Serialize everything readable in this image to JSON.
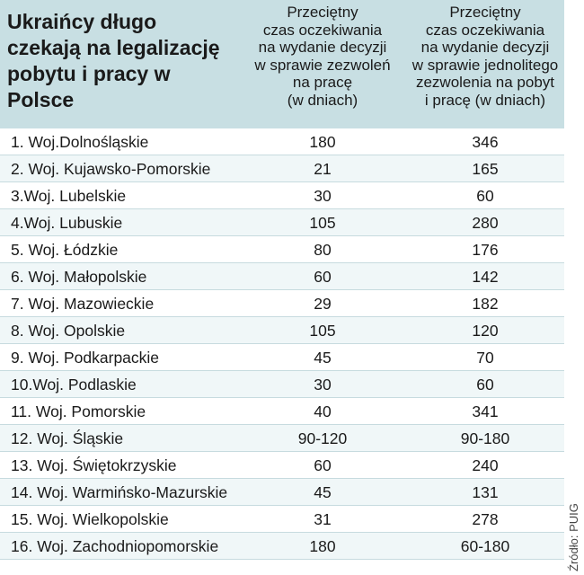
{
  "chart_data": {
    "type": "table",
    "title": "Ukraińcy długo czekają na legalizację pobytu i pracy w Polsce",
    "columns": [
      "",
      "Przeciętny\nczas oczekiwania\nna wydanie decyzji\nw sprawie zezwoleń\nna pracę\n(w dniach)",
      "Przeciętny\nczas oczekiwania\nna wydanie decyzji\nw sprawie jednolitego\nzezwolenia na pobyt\ni pracę (w dniach)"
    ],
    "rows": [
      {
        "name": "1. Woj.Dolnośląskie",
        "work": "180",
        "combined": "346"
      },
      {
        "name": "2. Woj. Kujawsko-Pomorskie",
        "work": "21",
        "combined": "165"
      },
      {
        "name": "3.Woj. Lubelskie",
        "work": "30",
        "combined": "60"
      },
      {
        "name": "4.Woj. Lubuskie",
        "work": "105",
        "combined": "280"
      },
      {
        "name": "5. Woj. Łódzkie",
        "work": "80",
        "combined": "176"
      },
      {
        "name": "6. Woj. Małopolskie",
        "work": "60",
        "combined": "142"
      },
      {
        "name": "7. Woj. Mazowieckie",
        "work": "29",
        "combined": "182"
      },
      {
        "name": "8. Woj. Opolskie",
        "work": "105",
        "combined": "120"
      },
      {
        "name": "9. Woj. Podkarpackie",
        "work": "45",
        "combined": "70"
      },
      {
        "name": "10.Woj. Podlaskie",
        "work": "30",
        "combined": "60"
      },
      {
        "name": "11. Woj. Pomorskie",
        "work": "40",
        "combined": "341"
      },
      {
        "name": "12. Woj. Śląskie",
        "work": "90-120",
        "combined": "90-180"
      },
      {
        "name": "13. Woj. Świętokrzyskie",
        "work": "60",
        "combined": "240"
      },
      {
        "name": "14. Woj. Warmińsko-Mazurskie",
        "work": "45",
        "combined": "131"
      },
      {
        "name": "15. Woj. Wielkopolskie",
        "work": "31",
        "combined": "278"
      },
      {
        "name": "16. Woj. Zachodniopomorskie",
        "work": "180",
        "combined": "60-180"
      }
    ],
    "source": "Źródło: PUIG"
  },
  "colors": {
    "header_bg": "#c8dfe3",
    "row_alt_bg": "#f0f7f8",
    "divider": "#c7dbdf",
    "text": "#1a1a1a"
  }
}
